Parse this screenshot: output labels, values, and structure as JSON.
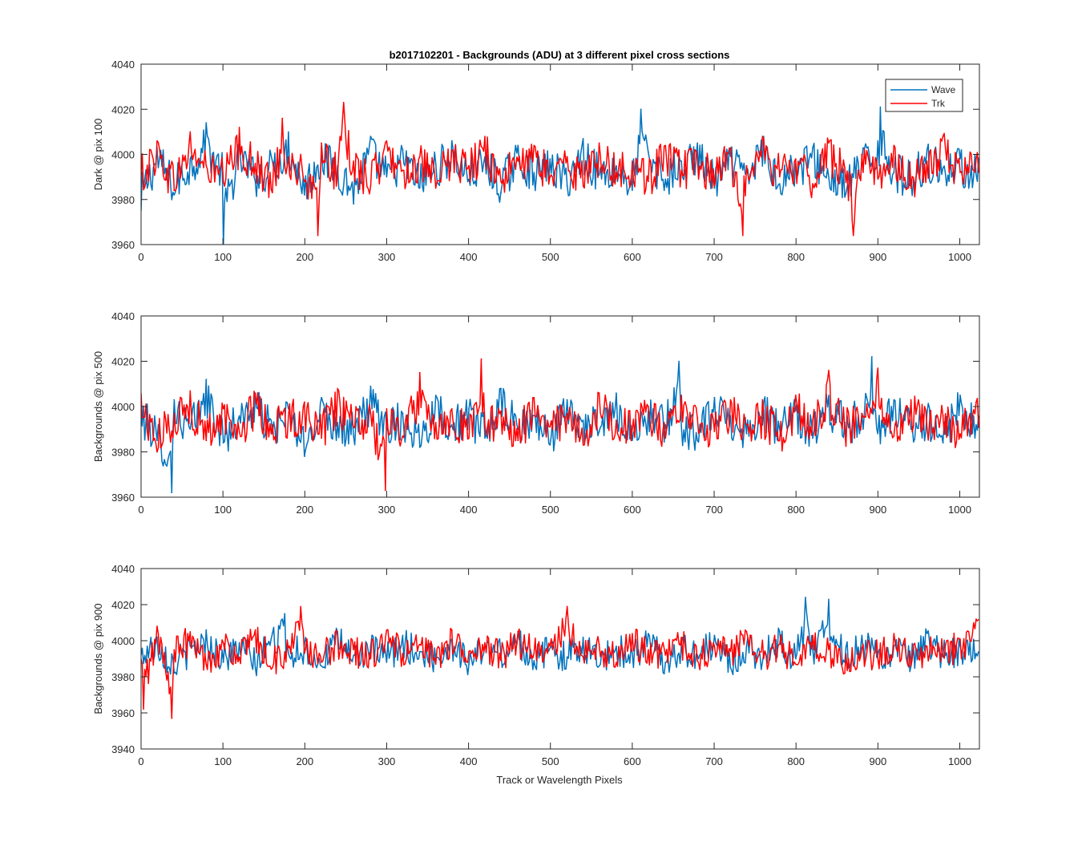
{
  "chart_data": {
    "type": "line",
    "title": "b2017102201 - Backgrounds (ADU) at 3 different pixel cross sections",
    "xlabel": "Track or Wavelength Pixels",
    "xlim": [
      0,
      1024
    ],
    "xticks": [
      0,
      100,
      200,
      300,
      400,
      500,
      600,
      700,
      800,
      900,
      1000
    ],
    "legend": {
      "placement": "top-right",
      "entries": [
        "Wave",
        "Trk"
      ]
    },
    "colors": {
      "Wave": "#0072BD",
      "Trk": "#FF0000",
      "axes": "#262626"
    },
    "grid": false,
    "panels": [
      {
        "ylabel": "Dark @ pix 100",
        "ylim": [
          3960,
          4040
        ],
        "yticks": [
          3960,
          3980,
          4000,
          4020,
          4040
        ],
        "series": [
          {
            "name": "Wave",
            "mean": 3991,
            "x": [
              0,
              20,
              40,
              60,
              80,
              100,
              101,
              120,
              140,
              160,
              180,
              200,
              220,
              240,
              260,
              280,
              300,
              320,
              340,
              360,
              380,
              400,
              420,
              440,
              460,
              480,
              500,
              520,
              540,
              560,
              580,
              600,
              611,
              620,
              640,
              660,
              680,
              700,
              720,
              740,
              760,
              780,
              800,
              820,
              840,
              860,
              880,
              900,
              903,
              920,
              940,
              960,
              980,
              1000,
              1020
            ],
            "values": [
              3975,
              4003,
              3982,
              3998,
              4014,
              3992,
              3960,
              4005,
              3988,
              3997,
              4010,
              3982,
              4003,
              3995,
              3978,
              4008,
              3990,
              4002,
              3985,
              3996,
              4006,
              3989,
              3999,
              3983,
              4004,
              3992,
              3998,
              3986,
              4007,
              3991,
              3995,
              3984,
              4020,
              4001,
              3989,
              3997,
              4005,
              3985,
              3999,
              3992,
              4008,
              3987,
              3996,
              4003,
              3990,
              3981,
              3998,
              4006,
              4021,
              3992,
              3987,
              4002,
              3994,
              3998,
              3991
            ]
          },
          {
            "name": "Trk",
            "mean": 3992,
            "x": [
              0,
              20,
              40,
              60,
              80,
              100,
              120,
              140,
              160,
              173,
              180,
              200,
              216,
              220,
              240,
              247,
              260,
              280,
              300,
              320,
              340,
              360,
              380,
              400,
              420,
              440,
              460,
              480,
              500,
              520,
              540,
              560,
              580,
              600,
              620,
              640,
              660,
              680,
              700,
              720,
              735,
              740,
              760,
              780,
              800,
              820,
              840,
              860,
              870,
              880,
              900,
              920,
              940,
              960,
              980,
              1000,
              1020
            ],
            "values": [
              3990,
              4006,
              3984,
              4010,
              3995,
              3988,
              4012,
              3996,
              3983,
              4016,
              3999,
              3988,
              3964,
              4005,
              3991,
              4023,
              3997,
              3986,
              4006,
              3993,
              3999,
              3985,
              4002,
              3995,
              4008,
              3988,
              3997,
              4004,
              3990,
              3999,
              3986,
              4005,
              3992,
              3997,
              3988,
              4004,
              3993,
              3999,
              3986,
              4003,
              3964,
              3995,
              4007,
              3990,
              3998,
              3987,
              4005,
              3994,
              3964,
              4000,
              3989,
              4004,
              3985,
              3997,
              4008,
              3992,
              3998
            ]
          }
        ]
      },
      {
        "ylabel": "Backgrounds @ pix 500",
        "ylim": [
          3960,
          4040
        ],
        "yticks": [
          3960,
          3980,
          4000,
          4020,
          4040
        ],
        "series": [
          {
            "name": "Wave",
            "mean": 3991,
            "x": [
              0,
              20,
              37,
              40,
              60,
              80,
              100,
              120,
              140,
              160,
              180,
              200,
              220,
              240,
              260,
              280,
              300,
              320,
              340,
              360,
              380,
              400,
              420,
              440,
              460,
              480,
              500,
              520,
              540,
              560,
              580,
              600,
              620,
              640,
              657,
              660,
              680,
              700,
              720,
              740,
              760,
              780,
              800,
              820,
              840,
              860,
              880,
              893,
              900,
              920,
              940,
              960,
              980,
              1000,
              1020
            ],
            "values": [
              3998,
              3985,
              3962,
              4003,
              3990,
              4012,
              3984,
              3996,
              4006,
              3988,
              3999,
              3978,
              4004,
              3993,
              3987,
              4009,
              3991,
              3997,
              3982,
              4005,
              3992,
              3999,
              3986,
              4008,
              3990,
              3996,
              3983,
              4003,
              3994,
              3989,
              4006,
              3985,
              3998,
              3992,
              4020,
              3991,
              3985,
              4004,
              3996,
              3988,
              4002,
              3990,
              3998,
              3986,
              4005,
              3993,
              3997,
              4022,
              3988,
              4003,
              3990,
              3997,
              3984,
              4005,
              3992
            ]
          },
          {
            "name": "Trk",
            "mean": 3991,
            "x": [
              0,
              20,
              40,
              60,
              80,
              100,
              120,
              140,
              160,
              180,
              200,
              220,
              240,
              260,
              280,
              298,
              300,
              320,
              340,
              360,
              380,
              400,
              416,
              420,
              440,
              460,
              480,
              500,
              520,
              540,
              560,
              580,
              600,
              620,
              640,
              660,
              680,
              700,
              720,
              740,
              760,
              780,
              800,
              820,
              840,
              860,
              880,
              900,
              920,
              940,
              960,
              980,
              1000,
              1020
            ],
            "values": [
              4006,
              3980,
              3997,
              4007,
              3985,
              3999,
              3989,
              4005,
              3992,
              3996,
              4002,
              3986,
              4008,
              3991,
              3997,
              3963,
              3999,
              3987,
              4015,
              3993,
              3999,
              3986,
              4021,
              3992,
              3998,
              3985,
              4004,
              3991,
              3997,
              3983,
              4006,
              3994,
              3990,
              4000,
              3986,
              4005,
              3995,
              3989,
              4003,
              3992,
              3998,
              3985,
              4005,
              3994,
              4016,
              3990,
              3997,
              4017,
              3987,
              4003,
              3991,
              3996,
              3988,
              4002
            ]
          }
        ]
      },
      {
        "ylabel": "Backgrounds @ pix 900",
        "ylim": [
          3940,
          4040
        ],
        "yticks": [
          3940,
          3960,
          3980,
          4000,
          4020,
          4040
        ],
        "series": [
          {
            "name": "Wave",
            "mean": 3992,
            "x": [
              0,
              20,
              40,
              60,
              80,
              100,
              120,
              140,
              160,
              175,
              180,
              200,
              220,
              240,
              260,
              280,
              300,
              320,
              340,
              360,
              380,
              400,
              420,
              440,
              460,
              480,
              500,
              520,
              540,
              560,
              580,
              600,
              620,
              640,
              660,
              680,
              700,
              720,
              740,
              760,
              780,
              800,
              812,
              820,
              840,
              860,
              880,
              900,
              920,
              940,
              960,
              980,
              1000,
              1020
            ],
            "values": [
              3992,
              4002,
              3982,
              3997,
              4006,
              3988,
              3999,
              3985,
              4004,
              4015,
              3993,
              3998,
              3986,
              4005,
              3992,
              3997,
              3988,
              4003,
              3994,
              3990,
              4001,
              3987,
              3998,
              3993,
              4005,
              3989,
              3996,
              3991,
              4002,
              3986,
              3997,
              3993,
              4004,
              3988,
              3998,
              3992,
              4003,
              3985,
              3997,
              3993,
              4005,
              3990,
              4024,
              3995,
              4023,
              3988,
              4003,
              3992,
              3997,
              3986,
              4004,
              3991,
              3997,
              3993
            ]
          },
          {
            "name": "Trk",
            "mean": 3993,
            "x": [
              0,
              3,
              20,
              38,
              40,
              60,
              80,
              100,
              120,
              140,
              160,
              180,
              195,
              200,
              220,
              240,
              260,
              280,
              300,
              320,
              340,
              360,
              380,
              400,
              420,
              440,
              460,
              480,
              500,
              520,
              540,
              560,
              580,
              600,
              620,
              640,
              660,
              680,
              700,
              720,
              740,
              760,
              780,
              800,
              820,
              840,
              860,
              880,
              900,
              920,
              940,
              960,
              980,
              1000,
              1020
            ],
            "values": [
              3990,
              3962,
              4008,
              3957,
              3995,
              4005,
              3987,
              3999,
              3991,
              4006,
              3985,
              3996,
              4019,
              3993,
              3988,
              4003,
              3995,
              3990,
              4006,
              3993,
              3998,
              3987,
              4006,
              3994,
              3999,
              3989,
              4005,
              3993,
              3997,
              4019,
              3991,
              3998,
              3988,
              4004,
              3995,
              3992,
              4002,
              3989,
              3997,
              3994,
              4005,
              3990,
              3998,
              3987,
              4003,
              3995,
              3982,
              3996,
              3990,
              4004,
              3986,
              3997,
              3992,
              4001,
              4012
            ]
          }
        ]
      }
    ]
  }
}
